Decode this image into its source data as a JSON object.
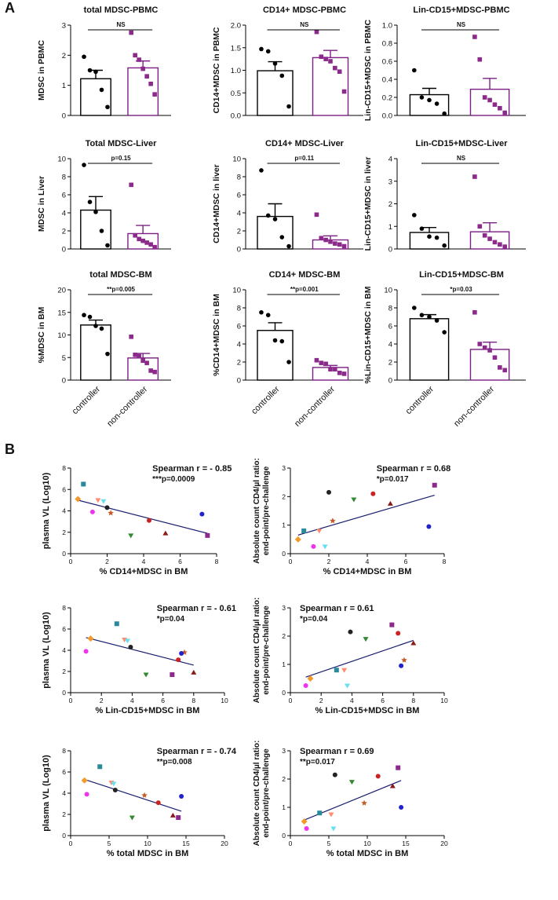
{
  "panel_labels": [
    "A",
    "B"
  ],
  "chart_data": [
    {
      "type": "bar",
      "title": "total MDSC-PBMC",
      "ylabel": "MDSC in PBMC",
      "ylim": [
        0,
        3
      ],
      "yticks": [
        0,
        1,
        2,
        3
      ],
      "categories": [],
      "means": [
        1.22,
        1.58
      ],
      "sems": [
        0.28,
        0.23
      ],
      "points": [
        [
          1.95,
          1.5,
          1.45,
          0.85,
          0.28
        ],
        [
          2.75,
          2.0,
          1.85,
          1.55,
          1.3,
          1.05,
          0.7
        ]
      ],
      "sig_label": "NS"
    },
    {
      "type": "bar",
      "title": "CD14+ MDSC-PBMC",
      "ylabel": "CD14+MDSC in PBMC",
      "ylim": [
        0,
        2.0
      ],
      "yticks": [
        0,
        0.5,
        1.0,
        1.5,
        2.0
      ],
      "categories": [],
      "means": [
        0.99,
        1.28
      ],
      "sems": [
        0.2,
        0.16
      ],
      "points": [
        [
          1.47,
          1.42,
          1.15,
          0.88,
          0.2
        ],
        [
          1.85,
          1.3,
          1.25,
          1.2,
          1.05,
          0.97,
          0.53
        ]
      ],
      "sig_label": "NS"
    },
    {
      "type": "bar",
      "title": "Lin-CD15+MDSC-PBMC",
      "ylabel": "Lin-CD15+MDSC in PBMC",
      "ylim": [
        0,
        1.0
      ],
      "yticks": [
        0,
        0.2,
        0.4,
        0.6,
        0.8,
        1.0
      ],
      "categories": [],
      "means": [
        0.23,
        0.29
      ],
      "sems": [
        0.07,
        0.12
      ],
      "points": [
        [
          0.5,
          0.2,
          0.17,
          0.13,
          0.02
        ],
        [
          0.87,
          0.62,
          0.2,
          0.17,
          0.12,
          0.08,
          0.03
        ]
      ],
      "sig_label": "NS"
    },
    {
      "type": "bar",
      "title": "Total MDSC-Liver",
      "ylabel": "MDSC in Liver",
      "ylim": [
        0,
        10
      ],
      "yticks": [
        0,
        2,
        4,
        6,
        8,
        10
      ],
      "categories": [],
      "means": [
        4.3,
        1.7
      ],
      "sems": [
        1.5,
        0.9
      ],
      "points": [
        [
          9.3,
          5.2,
          4.1,
          2.0,
          0.4
        ],
        [
          7.1,
          1.5,
          1.1,
          0.9,
          0.7,
          0.5,
          0.2
        ]
      ],
      "sig_label": "p=0.15"
    },
    {
      "type": "bar",
      "title": "CD14+ MDSC-Liver",
      "ylabel": "CD14+MDSC in liver",
      "ylim": [
        0,
        10
      ],
      "yticks": [
        0,
        2,
        4,
        6,
        8,
        10
      ],
      "categories": [],
      "means": [
        3.6,
        1.0
      ],
      "sems": [
        1.4,
        0.45
      ],
      "points": [
        [
          8.7,
          3.7,
          3.3,
          1.3,
          0.3
        ],
        [
          3.8,
          1.2,
          1.0,
          0.8,
          0.6,
          0.5,
          0.3
        ]
      ],
      "sig_label": "p=0.11"
    },
    {
      "type": "bar",
      "title": "Lin-CD15+MDSC-Liver",
      "ylabel": "Lin-CD15+MDSC in liver",
      "ylim": [
        0,
        4
      ],
      "yticks": [
        0,
        1,
        2,
        3,
        4
      ],
      "categories": [],
      "means": [
        0.73,
        0.76
      ],
      "sems": [
        0.22,
        0.4
      ],
      "points": [
        [
          1.5,
          0.9,
          0.55,
          0.5,
          0.15
        ],
        [
          3.2,
          1.0,
          0.6,
          0.45,
          0.3,
          0.2,
          0.1
        ]
      ],
      "sig_label": "NS"
    },
    {
      "type": "bar",
      "title": "total MDSC-BM",
      "ylabel": "%MDSC in BM",
      "ylim": [
        0,
        20
      ],
      "yticks": [
        0,
        5,
        10,
        15,
        20
      ],
      "categories": [
        "controller",
        "non-controller"
      ],
      "means": [
        12.2,
        4.9
      ],
      "sems": [
        1.1,
        1.0
      ],
      "points": [
        [
          14.4,
          14.0,
          12.0,
          11.4,
          5.8
        ],
        [
          9.6,
          5.6,
          5.3,
          4.3,
          3.8,
          2.1,
          1.8
        ]
      ],
      "sig_label": "**p=0.005"
    },
    {
      "type": "bar",
      "title": "CD14+ MDSC-BM",
      "ylabel": "%CD14+MDSC in BM",
      "ylim": [
        0,
        10
      ],
      "yticks": [
        0,
        2,
        4,
        6,
        8,
        10
      ],
      "categories": [
        "controller",
        "non-controller"
      ],
      "means": [
        5.5,
        1.4
      ],
      "sems": [
        0.85,
        0.22
      ],
      "points": [
        [
          7.5,
          7.2,
          4.4,
          4.3,
          2.0
        ],
        [
          2.2,
          1.9,
          1.8,
          1.2,
          1.2,
          0.8,
          0.7
        ]
      ],
      "sig_label": "**p=0.001"
    },
    {
      "type": "bar",
      "title": "Lin-CD15+MDSC-BM",
      "ylabel": "%Lin-CD15+MDSC in BM",
      "ylim": [
        0,
        10
      ],
      "yticks": [
        0,
        2,
        4,
        6,
        8,
        10
      ],
      "categories": [
        "controller",
        "non-controller"
      ],
      "means": [
        6.8,
        3.4
      ],
      "sems": [
        0.45,
        0.8
      ],
      "points": [
        [
          8.0,
          7.2,
          7.0,
          6.6,
          5.3
        ],
        [
          7.5,
          4.0,
          3.6,
          3.3,
          2.5,
          1.4,
          1.1
        ]
      ],
      "sig_label": "*p=0.03"
    },
    {
      "type": "scatter",
      "xlabel": "% CD14+MDSC in BM",
      "ylabel": "plasma VL (Log10)",
      "xlim": [
        0,
        8
      ],
      "ylim": [
        0,
        8
      ],
      "xticks": [
        0,
        2,
        4,
        6,
        8
      ],
      "yticks": [
        0,
        2,
        4,
        6,
        8
      ],
      "stat_lines": [
        "Spearman r = - 0.85",
        "***p=0.0009"
      ],
      "stat_pos": "top-right",
      "points": [
        [
          0.7,
          6.5
        ],
        [
          0.4,
          5.1
        ],
        [
          1.5,
          5.0
        ],
        [
          1.8,
          4.9
        ],
        [
          2.0,
          4.3
        ],
        [
          1.2,
          3.9
        ],
        [
          2.2,
          3.8
        ],
        [
          4.3,
          3.1
        ],
        [
          7.2,
          3.7
        ],
        [
          3.3,
          1.7
        ],
        [
          5.2,
          1.9
        ],
        [
          7.5,
          1.7
        ]
      ],
      "fit": [
        [
          0.4,
          5.0
        ],
        [
          7.5,
          1.9
        ]
      ]
    },
    {
      "type": "scatter",
      "xlabel": "% CD14+MDSC in BM",
      "ylabel": "Absolute count CD4/µl  ratio:",
      "ylabel2": "end-point/pre-challenge",
      "xlim": [
        0,
        8
      ],
      "ylim": [
        0,
        3
      ],
      "xticks": [
        0,
        2,
        4,
        6,
        8
      ],
      "yticks": [
        0,
        1,
        2,
        3
      ],
      "stat_lines": [
        "Spearman r = 0.68",
        "*p=0.017"
      ],
      "stat_pos": "top-right",
      "points": [
        [
          0.7,
          0.8
        ],
        [
          0.4,
          0.5
        ],
        [
          1.5,
          0.8
        ],
        [
          1.8,
          0.25
        ],
        [
          2.0,
          2.15
        ],
        [
          1.2,
          0.25
        ],
        [
          2.2,
          1.15
        ],
        [
          4.3,
          2.1
        ],
        [
          7.2,
          0.95
        ],
        [
          3.3,
          1.9
        ],
        [
          5.2,
          1.75
        ],
        [
          7.5,
          2.4
        ]
      ],
      "fit": [
        [
          0.4,
          0.65
        ],
        [
          7.5,
          2.05
        ]
      ]
    },
    {
      "type": "scatter",
      "xlabel": "% Lin-CD15+MDSC in BM",
      "ylabel": "plasma VL (Log10)",
      "xlim": [
        0,
        10
      ],
      "ylim": [
        0,
        8
      ],
      "xticks": [
        0,
        2,
        4,
        6,
        8,
        10
      ],
      "yticks": [
        0,
        2,
        4,
        6,
        8
      ],
      "stat_lines": [
        "Spearman r = - 0.61",
        "*p=0.04"
      ],
      "stat_pos": "top-right",
      "points": [
        [
          3.0,
          6.5
        ],
        [
          1.3,
          5.1
        ],
        [
          3.5,
          5.0
        ],
        [
          3.7,
          4.9
        ],
        [
          3.9,
          4.3
        ],
        [
          1.0,
          3.9
        ],
        [
          7.4,
          3.8
        ],
        [
          7.0,
          3.1
        ],
        [
          7.2,
          3.7
        ],
        [
          4.9,
          1.7
        ],
        [
          8.0,
          1.9
        ],
        [
          6.6,
          1.7
        ]
      ],
      "fit": [
        [
          1.0,
          5.2
        ],
        [
          8.0,
          2.6
        ]
      ]
    },
    {
      "type": "scatter",
      "xlabel": "% Lin-CD15+MDSC in BM",
      "ylabel": "Absolute count CD4/µl  ratio:",
      "ylabel2": "end-point/pre-challenge",
      "xlim": [
        0,
        10
      ],
      "ylim": [
        0,
        3
      ],
      "xticks": [
        0,
        2,
        4,
        6,
        8,
        10
      ],
      "yticks": [
        0,
        1,
        2,
        3
      ],
      "stat_lines": [
        "Spearman r = 0.61",
        "*p=0.04"
      ],
      "stat_pos": "top-left",
      "points": [
        [
          3.0,
          0.8
        ],
        [
          1.3,
          0.5
        ],
        [
          3.5,
          0.8
        ],
        [
          3.7,
          0.25
        ],
        [
          3.9,
          2.15
        ],
        [
          1.0,
          0.25
        ],
        [
          7.4,
          1.15
        ],
        [
          7.0,
          2.1
        ],
        [
          7.2,
          0.95
        ],
        [
          4.9,
          1.9
        ],
        [
          8.0,
          1.75
        ],
        [
          6.6,
          2.4
        ]
      ],
      "fit": [
        [
          1.0,
          0.55
        ],
        [
          8.0,
          1.85
        ]
      ]
    },
    {
      "type": "scatter",
      "xlabel": "% total MDSC in BM",
      "ylabel": "plasma VL (Log10)",
      "xlim": [
        0,
        20
      ],
      "ylim": [
        0,
        8
      ],
      "xticks": [
        0,
        5,
        10,
        15,
        20
      ],
      "yticks": [
        0,
        2,
        4,
        6,
        8
      ],
      "stat_lines": [
        "Spearman r = - 0.74",
        "**p=0.008"
      ],
      "stat_pos": "top-right",
      "points": [
        [
          3.8,
          6.5
        ],
        [
          1.8,
          5.2
        ],
        [
          5.3,
          5.0
        ],
        [
          5.6,
          4.9
        ],
        [
          5.8,
          4.3
        ],
        [
          2.1,
          3.9
        ],
        [
          9.6,
          3.8
        ],
        [
          11.4,
          3.1
        ],
        [
          14.4,
          3.7
        ],
        [
          8.0,
          1.7
        ],
        [
          13.3,
          1.9
        ],
        [
          14.0,
          1.7
        ]
      ],
      "fit": [
        [
          1.8,
          5.3
        ],
        [
          14.4,
          2.3
        ]
      ]
    },
    {
      "type": "scatter",
      "xlabel": "% total MDSC in BM",
      "ylabel": "Absolute count CD4/µl  ratio:",
      "ylabel2": "end-point/pre-challenge",
      "xlim": [
        0,
        20
      ],
      "ylim": [
        0,
        3
      ],
      "xticks": [
        0,
        5,
        10,
        15,
        20
      ],
      "yticks": [
        0,
        1,
        2,
        3
      ],
      "stat_lines": [
        "Spearman r = 0.69",
        "**p=0.017"
      ],
      "stat_pos": "top-left",
      "points": [
        [
          3.8,
          0.8
        ],
        [
          1.8,
          0.5
        ],
        [
          5.3,
          0.75
        ],
        [
          5.6,
          0.25
        ],
        [
          5.8,
          2.15
        ],
        [
          2.1,
          0.25
        ],
        [
          9.6,
          1.15
        ],
        [
          11.4,
          2.1
        ],
        [
          14.4,
          1.0
        ],
        [
          8.0,
          1.9
        ],
        [
          13.3,
          1.75
        ],
        [
          14.0,
          2.4
        ]
      ],
      "fit": [
        [
          1.8,
          0.55
        ],
        [
          14.4,
          1.95
        ]
      ]
    }
  ],
  "animal_markers": [
    {
      "shape": "square",
      "color": "#2a8a99"
    },
    {
      "shape": "diamond",
      "color": "#f39a2a"
    },
    {
      "shape": "tri-down",
      "color": "#ff8c6e"
    },
    {
      "shape": "tri-down",
      "color": "#66e0ee"
    },
    {
      "shape": "circle",
      "color": "#222222"
    },
    {
      "shape": "circle",
      "color": "#ee33ee"
    },
    {
      "shape": "star",
      "color": "#c85a2a"
    },
    {
      "shape": "circle",
      "color": "#cc2222"
    },
    {
      "shape": "circle",
      "color": "#2222cc"
    },
    {
      "shape": "tri-down",
      "color": "#338833"
    },
    {
      "shape": "tri-up",
      "color": "#8b1a1a"
    },
    {
      "shape": "square",
      "color": "#8b2a8b"
    }
  ],
  "colors": {
    "controller_edge": "#000000",
    "noncontroller_edge": "#7b2082",
    "noncontroller_point": "#8b2a8b",
    "fit_line": "#1a1f6e"
  }
}
